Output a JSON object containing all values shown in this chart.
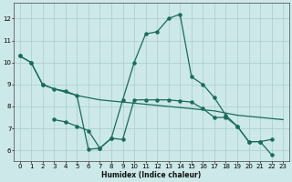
{
  "xlabel": "Humidex (Indice chaleur)",
  "background_color": "#cce8e8",
  "grid_color": "#aacccc",
  "line_color": "#1a6b5a",
  "xlim": [
    -0.5,
    23.5
  ],
  "ylim": [
    5.5,
    12.7
  ],
  "xticks": [
    0,
    1,
    2,
    3,
    4,
    5,
    6,
    7,
    8,
    9,
    10,
    11,
    12,
    13,
    14,
    15,
    16,
    17,
    18,
    19,
    20,
    21,
    22,
    23
  ],
  "yticks": [
    6,
    7,
    8,
    9,
    10,
    11,
    12
  ],
  "line1_x": [
    0,
    1,
    2,
    3,
    4,
    5,
    6,
    7,
    8,
    9,
    10,
    11,
    12,
    13,
    14,
    15,
    16,
    17,
    18,
    19,
    20,
    21,
    22
  ],
  "line1_y": [
    10.3,
    10.0,
    9.0,
    8.8,
    8.7,
    8.5,
    6.05,
    6.1,
    6.55,
    8.3,
    10.0,
    11.3,
    11.4,
    12.0,
    12.2,
    9.35,
    9.0,
    8.4,
    7.6,
    7.1,
    6.4,
    6.4,
    5.8
  ],
  "line2_x": [
    0,
    1,
    2,
    3,
    4,
    5,
    6,
    7,
    8,
    9,
    10,
    11,
    12,
    13,
    14,
    15,
    16,
    17,
    18,
    19,
    20,
    21,
    22,
    23
  ],
  "line2_y": [
    10.3,
    10.0,
    9.0,
    8.8,
    8.65,
    8.5,
    8.4,
    8.3,
    8.25,
    8.2,
    8.15,
    8.1,
    8.05,
    8.0,
    7.95,
    7.9,
    7.85,
    7.8,
    7.7,
    7.6,
    7.55,
    7.5,
    7.45,
    7.4
  ],
  "line3_x": [
    3,
    4,
    5,
    6,
    7,
    8,
    9,
    10,
    11,
    12,
    13,
    14,
    15,
    16,
    17,
    18,
    19,
    20,
    21,
    22
  ],
  "line3_y": [
    7.4,
    7.3,
    7.1,
    6.9,
    6.1,
    6.55,
    6.5,
    8.3,
    8.3,
    8.3,
    8.3,
    8.25,
    8.2,
    7.9,
    7.5,
    7.5,
    7.1,
    6.4,
    6.4,
    6.5
  ]
}
